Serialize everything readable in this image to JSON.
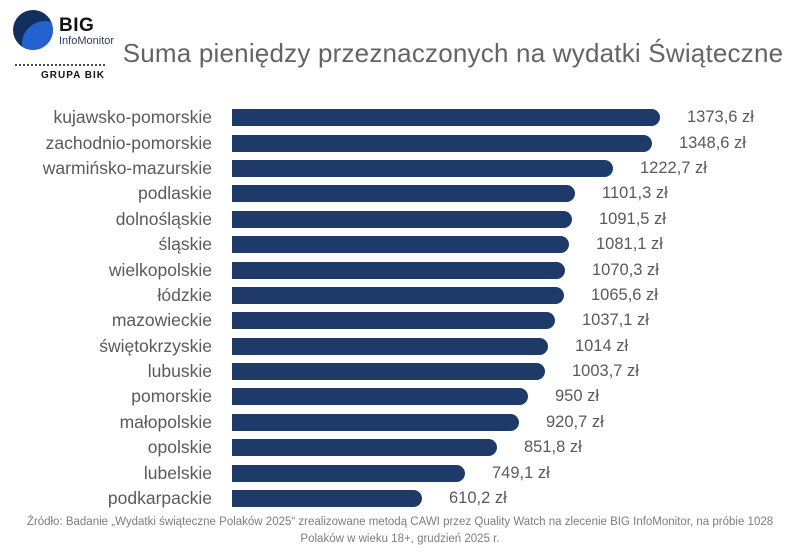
{
  "logo": {
    "big": "BIG",
    "infomonitor": "InfoMonitor",
    "grupa": "GRUPA BIK"
  },
  "title": "Suma pieniędzy przeznaczonych na wydatki Świąteczne",
  "source": "Źródło: Badanie „Wydatki świąteczne Polaków 2025“ zrealizowane metodą CAWI przez Quality Watch na zlecenie BIG InfoMonitor, na próbie 1028 Polaków w wieku 18+, grudzień 2025 r.",
  "chart_data": {
    "type": "bar",
    "orientation": "horizontal",
    "title": "Suma pieniędzy przeznaczonych na wydatki Świąteczne",
    "unit": "zł",
    "categories": [
      "kujawsko-pomorskie",
      "zachodnio-pomorskie",
      "warmińsko-mazurskie",
      "podlaskie",
      "dolnośląskie",
      "śląskie",
      "wielkopolskie",
      "łódzkie",
      "mazowieckie",
      "świętokrzyskie",
      "lubuskie",
      "pomorskie",
      "małopolskie",
      "opolskie",
      "lubelskie",
      "podkarpackie"
    ],
    "values": [
      1373.6,
      1348.6,
      1222.7,
      1101.3,
      1091.5,
      1081.1,
      1070.3,
      1065.6,
      1037.1,
      1014,
      1003.7,
      950,
      920.7,
      851.8,
      749.1,
      610.2
    ],
    "value_labels": [
      "1373,6 zł",
      "1348,6 zł",
      "1222,7 zł",
      "1101,3 zł",
      "1091,5 zł",
      "1081,1 zł",
      "1070,3 zł",
      "1065,6 zł",
      "1037,1 zł",
      "1014 zł",
      "1003,7 zł",
      "950 zł",
      "920,7 zł",
      "851,8 zł",
      "749,1 zł",
      "610,2 zł"
    ],
    "bar_color": "#1d3a69",
    "xlim": [
      0,
      1400
    ],
    "grid": false,
    "legend": false
  }
}
